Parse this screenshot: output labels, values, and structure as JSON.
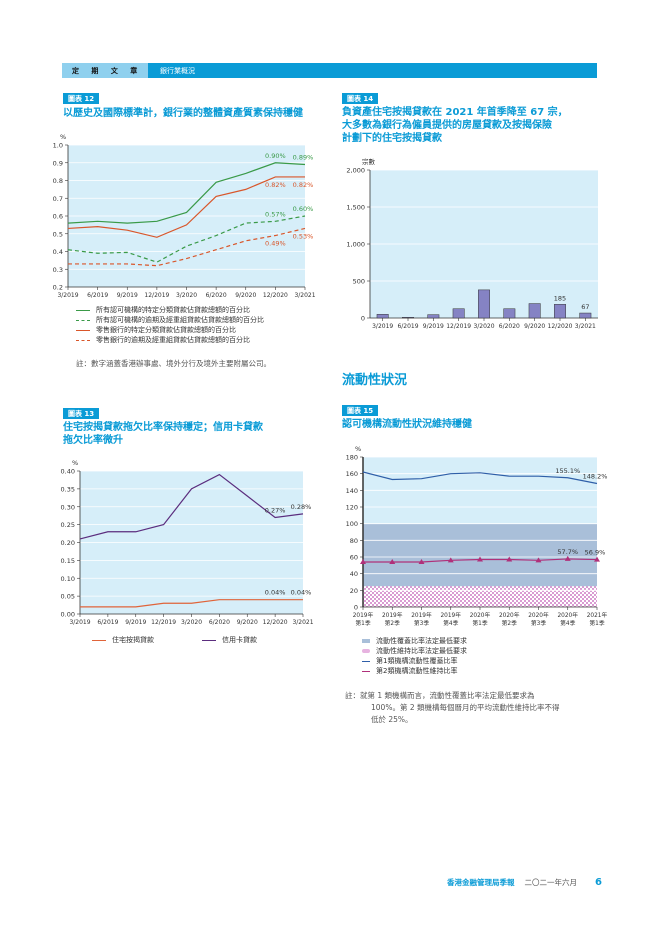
{
  "header": {
    "section": "定 期 文 章",
    "subsection": "銀行業概況"
  },
  "chart12": {
    "badge": "圖表 12",
    "title": "以歷史及國際標準計，銀行業的整體資產質素保持穩健",
    "note": "註：數字涵蓋香港辦事處、境外分行及境外主要附屬公司。"
  },
  "chart14": {
    "badge": "圖表 14",
    "title_lines": [
      "負資產住宅按揭貸款在 2021 年首季降至 67 宗，",
      "大多數為銀行為僱員提供的房屋貸款及按揭保險",
      "計劃下的住宅按揭貸款"
    ]
  },
  "section_heading": "流動性狀況",
  "chart13": {
    "badge": "圖表 13",
    "title_lines": [
      "住宅按揭貸款拖欠比率保持穩定；信用卡貸款",
      "拖欠比率微升"
    ]
  },
  "chart15": {
    "badge": "圖表 15",
    "title": "認可機構流動性狀況維持穩健",
    "note_lines": [
      "註：就第 1 類機構而言，流動性覆蓋比率法定最低要求為",
      "100%。第 2 類機構每個曆月的平均流動性維持比率不得",
      "低於 25%。"
    ]
  },
  "footer": {
    "publication": "香港金融管理局季報",
    "date": "二〇二一年六月",
    "page": "6"
  },
  "chart_data": [
    {
      "id": "c12",
      "type": "line",
      "ylabel": "%",
      "ylim": [
        0.2,
        1.0
      ],
      "yticks": [
        "0.2",
        "0.3",
        "0.4",
        "0.5",
        "0.6",
        "0.7",
        "0.8",
        "0.9",
        "1.0"
      ],
      "grid": true,
      "categories": [
        "3/2019",
        "6/2019",
        "9/2019",
        "12/2019",
        "3/2020",
        "6/2020",
        "9/2020",
        "12/2020",
        "3/2021"
      ],
      "series": [
        {
          "name": "所有認可機構的特定分類貸款佔貸款總額的百分比",
          "color": "#3a9a48",
          "dash": false,
          "values": [
            0.56,
            0.57,
            0.56,
            0.57,
            0.62,
            0.79,
            0.84,
            0.9,
            0.89
          ],
          "labels": {
            "7": "0.90%",
            "8": "0.89%"
          }
        },
        {
          "name": "所有認可機構的逾期及經重組貸款佔貸款總額的百分比",
          "color": "#3a9a48",
          "dash": true,
          "values": [
            0.41,
            0.39,
            0.395,
            0.34,
            0.43,
            0.49,
            0.56,
            0.57,
            0.6
          ],
          "labels": {
            "7": "0.57%",
            "8": "0.60%"
          }
        },
        {
          "name": "零售銀行的特定分類貸款佔貸款總額的百分比",
          "color": "#d9562a",
          "dash": false,
          "values": [
            0.53,
            0.54,
            0.52,
            0.48,
            0.55,
            0.71,
            0.75,
            0.82,
            0.82
          ],
          "labels": {
            "7": "0.82%",
            "8": "0.82%"
          }
        },
        {
          "name": "零售銀行的逾期及經重組貸款佔貸款總額的百分比",
          "color": "#d9562a",
          "dash": true,
          "values": [
            0.33,
            0.33,
            0.33,
            0.32,
            0.36,
            0.41,
            0.46,
            0.49,
            0.53
          ],
          "labels": {
            "7": "0.49%",
            "8": "0.53%"
          }
        }
      ]
    },
    {
      "id": "c14",
      "type": "bar",
      "ylabel": "宗數",
      "ylim": [
        0,
        2000
      ],
      "yticks": [
        "0",
        "500",
        "1,000",
        "1,500",
        "2,000"
      ],
      "grid": true,
      "categories": [
        "3/2019",
        "6/2019",
        "9/2019",
        "12/2019",
        "3/2020",
        "6/2020",
        "9/2020",
        "12/2020",
        "3/2021"
      ],
      "values": [
        50,
        10,
        45,
        125,
        380,
        125,
        195,
        185,
        67
      ],
      "labels": {
        "7": "185",
        "8": "67"
      },
      "color": "#8583c4"
    },
    {
      "id": "c13",
      "type": "line",
      "ylabel": "%",
      "ylim": [
        0,
        0.4
      ],
      "yticks": [
        "0.00",
        "0.05",
        "0.10",
        "0.15",
        "0.20",
        "0.25",
        "0.30",
        "0.35",
        "0.40"
      ],
      "grid": true,
      "categories": [
        "3/2019",
        "6/2019",
        "9/2019",
        "12/2019",
        "3/2020",
        "6/2020",
        "9/2020",
        "12/2020",
        "3/2021"
      ],
      "series": [
        {
          "name": "住宅按揭貸款",
          "color": "#e0643a",
          "dash": false,
          "values": [
            0.02,
            0.02,
            0.02,
            0.03,
            0.03,
            0.04,
            0.04,
            0.04,
            0.04
          ],
          "labels": {
            "7": "0.04%",
            "8": "0.04%"
          }
        },
        {
          "name": "信用卡貸款",
          "color": "#5b2d7e",
          "dash": false,
          "values": [
            0.21,
            0.23,
            0.23,
            0.25,
            0.35,
            0.39,
            0.33,
            0.27,
            0.28
          ],
          "labels": {
            "7": "0.27%",
            "8": "0.28%"
          }
        }
      ]
    },
    {
      "id": "c15",
      "type": "line",
      "ylabel": "%",
      "ylim": [
        0,
        180
      ],
      "yticks": [
        "0",
        "20",
        "40",
        "60",
        "80",
        "100",
        "120",
        "140",
        "160",
        "180"
      ],
      "grid": true,
      "categories": [
        [
          "2019年",
          "第1季"
        ],
        [
          "2019年",
          "第2季"
        ],
        [
          "2019年",
          "第3季"
        ],
        [
          "2019年",
          "第4季"
        ],
        [
          "2020年",
          "第1季"
        ],
        [
          "2020年",
          "第2季"
        ],
        [
          "2020年",
          "第3季"
        ],
        [
          "2020年",
          "第4季"
        ],
        [
          "2021年",
          "第1季"
        ]
      ],
      "bands": [
        {
          "name": "流動性覆蓋比率法定最低要求",
          "value": 100,
          "color": "#a9bfd9"
        },
        {
          "name": "流動性維持比率法定最低要求",
          "value": 25,
          "color": "#e7b3e0"
        }
      ],
      "series": [
        {
          "name": "第1類機構流動性覆蓋比率",
          "color": "#2f5fa8",
          "dash": false,
          "values": [
            162,
            153,
            154,
            160,
            161,
            157,
            157,
            155.1,
            148.2
          ],
          "labels": {
            "7": "155.1%",
            "8": "148.2%"
          }
        },
        {
          "name": "第2類機構流動性維持比率",
          "color": "#b0307a",
          "dash": false,
          "marker": true,
          "values": [
            54,
            54,
            54,
            56,
            57,
            57,
            56,
            57.7,
            56.9
          ],
          "labels": {
            "7": "57.7%",
            "8": "56.9%"
          }
        }
      ]
    }
  ]
}
